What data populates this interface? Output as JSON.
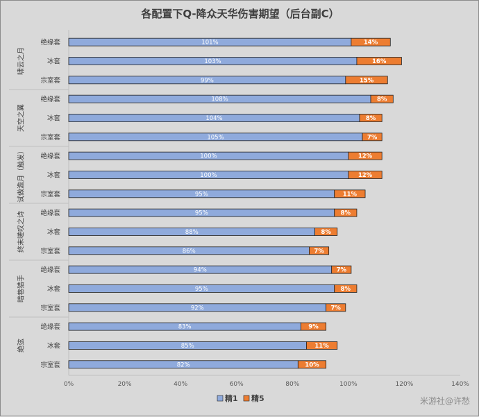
{
  "chart_data": {
    "type": "bar",
    "orientation": "horizontal",
    "stacked": true,
    "title": "各配置下Q-降众天华伤害期望（后台副C）",
    "xlim": [
      0,
      140
    ],
    "x_ticks": [
      "0%",
      "20%",
      "40%",
      "60%",
      "80%",
      "100%",
      "120%",
      "140%"
    ],
    "grid": false,
    "legend_position": "bottom",
    "groups": [
      {
        "name": "啸云之月",
        "categories": [
          "绝缘套",
          "冰套",
          "宗室套"
        ]
      },
      {
        "name": "天空之翼",
        "categories": [
          "绝缘套",
          "冰套",
          "宗室套"
        ]
      },
      {
        "name": "试做澹月（触发）",
        "categories": [
          "绝缘套",
          "冰套",
          "宗室套"
        ]
      },
      {
        "name": "终末嗟叹之诗",
        "categories": [
          "绝缘套",
          "冰套",
          "宗室套"
        ]
      },
      {
        "name": "暗巷猎手",
        "categories": [
          "绝缘套",
          "冰套",
          "宗室套"
        ]
      },
      {
        "name": "绝弦",
        "categories": [
          "绝缘套",
          "冰套",
          "宗室套"
        ]
      }
    ],
    "series": [
      {
        "name": "精1",
        "color": "#8faadc",
        "values": [
          101,
          103,
          99,
          108,
          104,
          105,
          100,
          100,
          95,
          95,
          88,
          86,
          94,
          95,
          92,
          83,
          85,
          82
        ],
        "labels": [
          "101%",
          "103%",
          "99%",
          "108%",
          "104%",
          "105%",
          "100%",
          "100%",
          "95%",
          "95%",
          "88%",
          "86%",
          "94%",
          "95%",
          "92%",
          "83%",
          "85%",
          "82%"
        ]
      },
      {
        "name": "精5",
        "color": "#ed7d31",
        "values": [
          14,
          16,
          15,
          8,
          8,
          7,
          12,
          12,
          11,
          8,
          8,
          7,
          7,
          8,
          7,
          9,
          11,
          10
        ],
        "labels": [
          "14%",
          "16%",
          "15%",
          "8%",
          "8%",
          "7%",
          "12%",
          "12%",
          "11%",
          "8%",
          "8%",
          "7%",
          "7%",
          "8%",
          "7%",
          "9%",
          "11%",
          "10%"
        ]
      }
    ]
  },
  "watermark": "米游社@许愁"
}
